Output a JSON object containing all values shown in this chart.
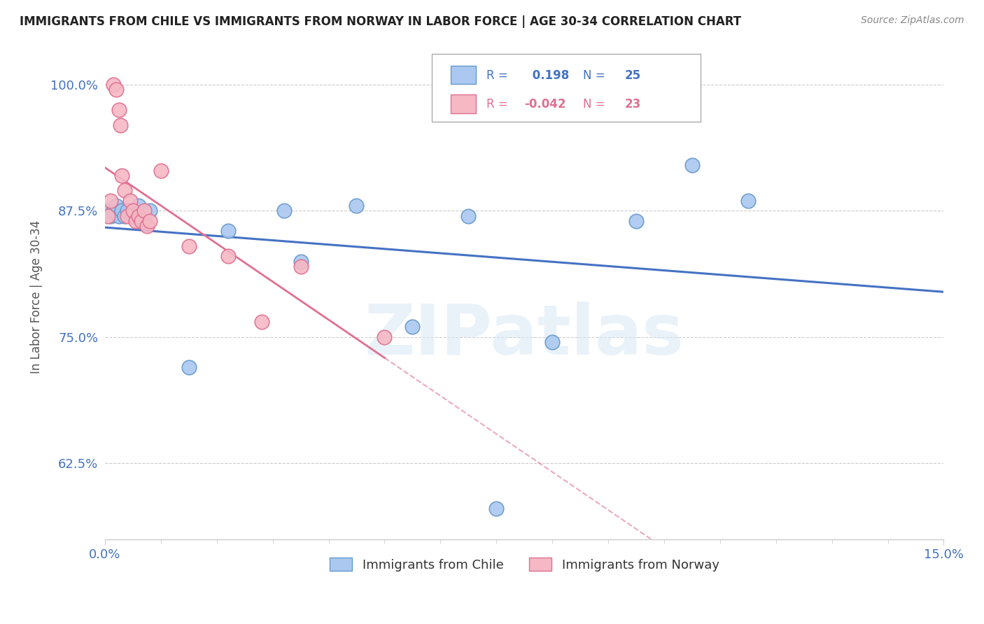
{
  "title": "IMMIGRANTS FROM CHILE VS IMMIGRANTS FROM NORWAY IN LABOR FORCE | AGE 30-34 CORRELATION CHART",
  "source": "Source: ZipAtlas.com",
  "ylabel": "In Labor Force | Age 30-34",
  "xlim": [
    0.0,
    15.0
  ],
  "ylim": [
    55.0,
    103.0
  ],
  "x_tick_labels": [
    "0.0%",
    "15.0%"
  ],
  "y_ticks": [
    62.5,
    75.0,
    87.5,
    100.0
  ],
  "y_tick_labels": [
    "62.5%",
    "75.0%",
    "87.5%",
    "100.0%"
  ],
  "chile_color": "#aac8f0",
  "chile_edge_color": "#6699cc",
  "norway_color": "#f5b8c4",
  "norway_edge_color": "#e07090",
  "chile_R": 0.198,
  "chile_N": 25,
  "norway_R": -0.042,
  "norway_N": 23,
  "chile_line_color": "#4472c4",
  "norway_line_color": "#e07090",
  "watermark_text": "ZIPatlas",
  "legend_chile": "Immigrants from Chile",
  "legend_norway": "Immigrants from Norway",
  "chile_scatter_x": [
    0.05,
    0.1,
    0.15,
    0.2,
    0.25,
    0.3,
    0.35,
    0.4,
    0.5,
    0.55,
    0.6,
    0.7,
    0.8,
    1.5,
    2.2,
    3.2,
    3.5,
    4.5,
    5.5,
    6.5,
    7.0,
    8.0,
    9.5,
    10.5,
    11.5
  ],
  "chile_scatter_y": [
    87.5,
    87.0,
    87.5,
    88.0,
    87.0,
    87.5,
    87.0,
    87.5,
    87.0,
    87.0,
    88.0,
    86.5,
    87.5,
    72.0,
    85.5,
    87.5,
    82.5,
    88.0,
    76.0,
    87.0,
    58.0,
    74.5,
    86.5,
    92.0,
    88.5
  ],
  "norway_scatter_x": [
    0.05,
    0.1,
    0.15,
    0.2,
    0.25,
    0.28,
    0.3,
    0.35,
    0.4,
    0.45,
    0.5,
    0.55,
    0.6,
    0.65,
    0.7,
    0.75,
    0.8,
    1.0,
    1.5,
    2.2,
    2.8,
    3.5,
    5.0
  ],
  "norway_scatter_y": [
    87.0,
    88.5,
    100.0,
    99.5,
    97.5,
    96.0,
    91.0,
    89.5,
    87.0,
    88.5,
    87.5,
    86.5,
    87.0,
    86.5,
    87.5,
    86.0,
    86.5,
    91.5,
    84.0,
    83.0,
    76.5,
    82.0,
    75.0
  ],
  "background_color": "#ffffff",
  "grid_color": "#cccccc"
}
